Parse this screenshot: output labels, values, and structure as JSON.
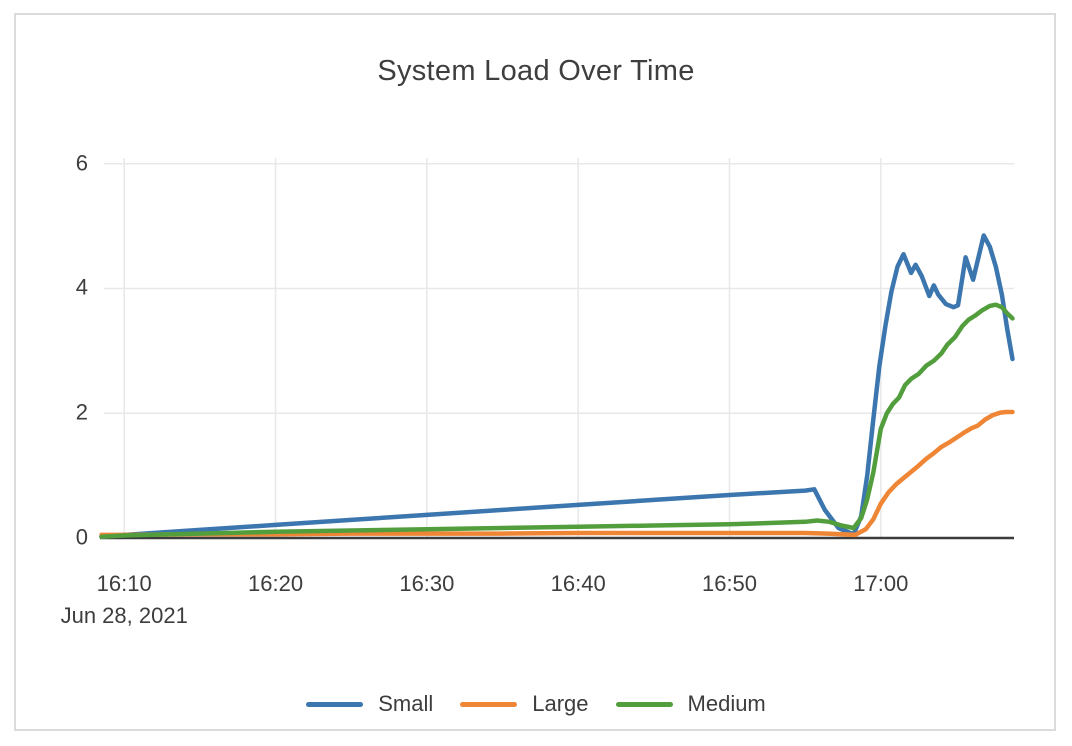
{
  "card": {
    "title": "System Load Over Time"
  },
  "chart_data": {
    "type": "line",
    "title": "System Load Over Time",
    "grid": true,
    "legend_position": "bottom",
    "x_axis": {
      "unit": "minutes after 16:00 on Jun 28, 2021",
      "date_label": "Jun 28, 2021",
      "xlim": [
        8.4,
        68.8
      ],
      "tick_values": [
        10,
        20,
        30,
        40,
        50,
        60
      ],
      "tick_labels": [
        "16:10",
        "16:20",
        "16:30",
        "16:40",
        "16:50",
        "17:00"
      ]
    },
    "y_axis": {
      "ylim": [
        0,
        6.22
      ],
      "tick_values": [
        0,
        2,
        4,
        6
      ],
      "tick_labels": [
        "0",
        "2",
        "4",
        "6"
      ]
    },
    "series": [
      {
        "name": "Small",
        "color": "#3c76af",
        "points": [
          [
            8.5,
            0.02
          ],
          [
            10,
            0.05
          ],
          [
            15,
            0.13
          ],
          [
            20,
            0.21
          ],
          [
            25,
            0.29
          ],
          [
            30,
            0.37
          ],
          [
            35,
            0.45
          ],
          [
            40,
            0.53
          ],
          [
            45,
            0.61
          ],
          [
            50,
            0.69
          ],
          [
            55,
            0.76
          ],
          [
            55.6,
            0.78
          ],
          [
            56.3,
            0.45
          ],
          [
            57.2,
            0.16
          ],
          [
            58.2,
            0.06
          ],
          [
            58.7,
            0.35
          ],
          [
            59.1,
            1.0
          ],
          [
            59.5,
            1.9
          ],
          [
            59.9,
            2.75
          ],
          [
            60.3,
            3.4
          ],
          [
            60.7,
            3.95
          ],
          [
            61.1,
            4.35
          ],
          [
            61.5,
            4.55
          ],
          [
            62.0,
            4.25
          ],
          [
            62.3,
            4.38
          ],
          [
            62.7,
            4.2
          ],
          [
            63.2,
            3.88
          ],
          [
            63.5,
            4.05
          ],
          [
            63.8,
            3.9
          ],
          [
            64.3,
            3.75
          ],
          [
            64.8,
            3.7
          ],
          [
            65.1,
            3.73
          ],
          [
            65.6,
            4.5
          ],
          [
            66.1,
            4.14
          ],
          [
            66.8,
            4.85
          ],
          [
            67.2,
            4.67
          ],
          [
            67.6,
            4.35
          ],
          [
            68.0,
            3.9
          ],
          [
            68.35,
            3.35
          ],
          [
            68.7,
            2.87
          ]
        ]
      },
      {
        "name": "Large",
        "color": "#ef8636",
        "points": [
          [
            8.5,
            0.05
          ],
          [
            10,
            0.05
          ],
          [
            15,
            0.06
          ],
          [
            20,
            0.06
          ],
          [
            25,
            0.07
          ],
          [
            30,
            0.07
          ],
          [
            35,
            0.07
          ],
          [
            40,
            0.08
          ],
          [
            45,
            0.08
          ],
          [
            50,
            0.08
          ],
          [
            55,
            0.08
          ],
          [
            56.5,
            0.07
          ],
          [
            57.5,
            0.06
          ],
          [
            58.3,
            0.05
          ],
          [
            59.0,
            0.14
          ],
          [
            59.5,
            0.3
          ],
          [
            60.0,
            0.55
          ],
          [
            60.5,
            0.73
          ],
          [
            61.0,
            0.86
          ],
          [
            61.5,
            0.96
          ],
          [
            62.0,
            1.06
          ],
          [
            62.5,
            1.16
          ],
          [
            63.0,
            1.27
          ],
          [
            63.5,
            1.36
          ],
          [
            64.0,
            1.46
          ],
          [
            64.5,
            1.53
          ],
          [
            65.0,
            1.61
          ],
          [
            65.5,
            1.69
          ],
          [
            66.0,
            1.76
          ],
          [
            66.4,
            1.8
          ],
          [
            66.9,
            1.9
          ],
          [
            67.4,
            1.97
          ],
          [
            67.9,
            2.01
          ],
          [
            68.3,
            2.02
          ],
          [
            68.7,
            2.02
          ]
        ]
      },
      {
        "name": "Medium",
        "color": "#529e3d",
        "points": [
          [
            8.5,
            0.02
          ],
          [
            10,
            0.04
          ],
          [
            15,
            0.07
          ],
          [
            20,
            0.1
          ],
          [
            25,
            0.12
          ],
          [
            30,
            0.14
          ],
          [
            35,
            0.16
          ],
          [
            40,
            0.18
          ],
          [
            45,
            0.2
          ],
          [
            50,
            0.22
          ],
          [
            55,
            0.26
          ],
          [
            55.8,
            0.28
          ],
          [
            56.6,
            0.26
          ],
          [
            57.4,
            0.2
          ],
          [
            58.2,
            0.16
          ],
          [
            58.7,
            0.32
          ],
          [
            59.1,
            0.62
          ],
          [
            59.5,
            1.05
          ],
          [
            60.0,
            1.75
          ],
          [
            60.4,
            2.0
          ],
          [
            60.8,
            2.15
          ],
          [
            61.2,
            2.25
          ],
          [
            61.6,
            2.45
          ],
          [
            62.0,
            2.55
          ],
          [
            62.5,
            2.63
          ],
          [
            63.0,
            2.76
          ],
          [
            63.5,
            2.84
          ],
          [
            64.0,
            2.96
          ],
          [
            64.4,
            3.1
          ],
          [
            64.9,
            3.22
          ],
          [
            65.4,
            3.4
          ],
          [
            65.8,
            3.5
          ],
          [
            66.2,
            3.56
          ],
          [
            66.7,
            3.65
          ],
          [
            67.2,
            3.72
          ],
          [
            67.6,
            3.74
          ],
          [
            68.0,
            3.7
          ],
          [
            68.35,
            3.6
          ],
          [
            68.7,
            3.52
          ]
        ]
      }
    ],
    "style": {
      "gridline_color": "#e8e8e8",
      "axis_line_color": "#3c3c3c",
      "text_color": "#3d3d3d",
      "card_border_color": "#dbdbdb"
    }
  }
}
